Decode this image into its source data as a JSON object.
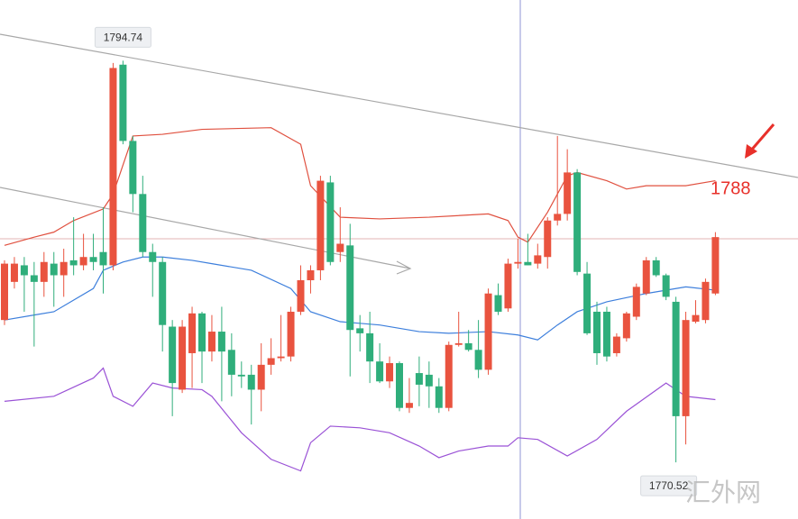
{
  "chart_data": {
    "type": "candlestick",
    "ylim": [
      1767.1,
      1798.4
    ],
    "up_color": "#e9533f",
    "down_color": "#2fae7b",
    "candles": [
      {
        "o": 1779.1,
        "h": 1782.7,
        "l": 1778.8,
        "c": 1782.5
      },
      {
        "o": 1781.4,
        "h": 1782.9,
        "l": 1781.0,
        "c": 1782.5
      },
      {
        "o": 1782.4,
        "h": 1782.9,
        "l": 1779.6,
        "c": 1781.8
      },
      {
        "o": 1781.8,
        "h": 1782.6,
        "l": 1777.5,
        "c": 1781.4
      },
      {
        "o": 1781.4,
        "h": 1783.2,
        "l": 1780.5,
        "c": 1782.6
      },
      {
        "o": 1782.5,
        "h": 1783.2,
        "l": 1779.9,
        "c": 1781.8
      },
      {
        "o": 1781.8,
        "h": 1783.4,
        "l": 1780.5,
        "c": 1782.6
      },
      {
        "o": 1782.7,
        "h": 1785.3,
        "l": 1781.8,
        "c": 1782.4
      },
      {
        "o": 1782.4,
        "h": 1784.3,
        "l": 1782.1,
        "c": 1782.9
      },
      {
        "o": 1782.9,
        "h": 1784.3,
        "l": 1782.1,
        "c": 1782.6
      },
      {
        "o": 1783.2,
        "h": 1785.9,
        "l": 1780.7,
        "c": 1782.4
      },
      {
        "o": 1782.4,
        "h": 1794.6,
        "l": 1782.1,
        "c": 1794.3
      },
      {
        "o": 1794.5,
        "h": 1794.74,
        "l": 1789.7,
        "c": 1789.9
      },
      {
        "o": 1789.9,
        "h": 1790.2,
        "l": 1785.6,
        "c": 1786.7
      },
      {
        "o": 1786.7,
        "h": 1787.8,
        "l": 1782.9,
        "c": 1783.2
      },
      {
        "o": 1783.2,
        "h": 1783.7,
        "l": 1780.5,
        "c": 1782.6
      },
      {
        "o": 1782.6,
        "h": 1782.9,
        "l": 1777.2,
        "c": 1778.8
      },
      {
        "o": 1778.7,
        "h": 1779.1,
        "l": 1773.3,
        "c": 1775.3
      },
      {
        "o": 1774.9,
        "h": 1779.1,
        "l": 1774.7,
        "c": 1778.7
      },
      {
        "o": 1777.1,
        "h": 1779.9,
        "l": 1775.0,
        "c": 1779.5
      },
      {
        "o": 1779.5,
        "h": 1779.6,
        "l": 1775.3,
        "c": 1777.2
      },
      {
        "o": 1777.2,
        "h": 1779.4,
        "l": 1776.6,
        "c": 1778.4
      },
      {
        "o": 1778.4,
        "h": 1779.9,
        "l": 1774.2,
        "c": 1777.2
      },
      {
        "o": 1777.3,
        "h": 1778.3,
        "l": 1774.5,
        "c": 1775.8
      },
      {
        "o": 1775.8,
        "h": 1776.6,
        "l": 1775.0,
        "c": 1775.7
      },
      {
        "o": 1775.8,
        "h": 1776.4,
        "l": 1772.8,
        "c": 1774.9
      },
      {
        "o": 1774.9,
        "h": 1777.7,
        "l": 1773.6,
        "c": 1776.4
      },
      {
        "o": 1776.4,
        "h": 1778.0,
        "l": 1775.8,
        "c": 1776.8
      },
      {
        "o": 1776.8,
        "h": 1779.4,
        "l": 1776.6,
        "c": 1776.9
      },
      {
        "o": 1776.9,
        "h": 1779.9,
        "l": 1776.6,
        "c": 1779.6
      },
      {
        "o": 1779.6,
        "h": 1782.4,
        "l": 1779.4,
        "c": 1781.5
      },
      {
        "o": 1781.5,
        "h": 1782.4,
        "l": 1780.7,
        "c": 1782.1
      },
      {
        "o": 1782.1,
        "h": 1787.8,
        "l": 1781.5,
        "c": 1787.5
      },
      {
        "o": 1787.4,
        "h": 1787.8,
        "l": 1782.4,
        "c": 1782.6
      },
      {
        "o": 1783.2,
        "h": 1785.9,
        "l": 1782.6,
        "c": 1783.7
      },
      {
        "o": 1783.6,
        "h": 1784.9,
        "l": 1775.7,
        "c": 1778.5
      },
      {
        "o": 1778.6,
        "h": 1779.4,
        "l": 1777.2,
        "c": 1778.3
      },
      {
        "o": 1778.3,
        "h": 1779.6,
        "l": 1775.3,
        "c": 1776.6
      },
      {
        "o": 1776.6,
        "h": 1777.7,
        "l": 1775.3,
        "c": 1775.4
      },
      {
        "o": 1775.4,
        "h": 1776.9,
        "l": 1775.0,
        "c": 1776.5
      },
      {
        "o": 1776.5,
        "h": 1776.6,
        "l": 1773.6,
        "c": 1773.8
      },
      {
        "o": 1773.8,
        "h": 1775.6,
        "l": 1773.5,
        "c": 1774.1
      },
      {
        "o": 1775.9,
        "h": 1776.9,
        "l": 1773.9,
        "c": 1775.2
      },
      {
        "o": 1775.8,
        "h": 1776.6,
        "l": 1773.8,
        "c": 1775.1
      },
      {
        "o": 1775.1,
        "h": 1775.6,
        "l": 1773.5,
        "c": 1773.8
      },
      {
        "o": 1773.8,
        "h": 1777.8,
        "l": 1773.6,
        "c": 1777.6
      },
      {
        "o": 1777.6,
        "h": 1779.6,
        "l": 1777.5,
        "c": 1777.7
      },
      {
        "o": 1777.7,
        "h": 1778.5,
        "l": 1777.2,
        "c": 1777.3
      },
      {
        "o": 1777.3,
        "h": 1779.1,
        "l": 1775.6,
        "c": 1776.1
      },
      {
        "o": 1776.1,
        "h": 1781.0,
        "l": 1775.8,
        "c": 1780.7
      },
      {
        "o": 1780.6,
        "h": 1781.3,
        "l": 1779.4,
        "c": 1779.6
      },
      {
        "o": 1779.8,
        "h": 1782.8,
        "l": 1779.6,
        "c": 1782.5
      },
      {
        "o": 1782.5,
        "h": 1784.0,
        "l": 1782.2,
        "c": 1782.6
      },
      {
        "o": 1782.6,
        "h": 1784.3,
        "l": 1782.4,
        "c": 1782.4
      },
      {
        "o": 1782.5,
        "h": 1783.7,
        "l": 1782.2,
        "c": 1783.0
      },
      {
        "o": 1782.9,
        "h": 1785.3,
        "l": 1782.2,
        "c": 1785.1
      },
      {
        "o": 1785.1,
        "h": 1790.2,
        "l": 1784.8,
        "c": 1785.5
      },
      {
        "o": 1785.5,
        "h": 1789.4,
        "l": 1785.1,
        "c": 1788.0
      },
      {
        "o": 1788.0,
        "h": 1788.2,
        "l": 1781.8,
        "c": 1782.0
      },
      {
        "o": 1781.9,
        "h": 1782.6,
        "l": 1778.2,
        "c": 1778.3
      },
      {
        "o": 1779.6,
        "h": 1780.2,
        "l": 1776.4,
        "c": 1777.1
      },
      {
        "o": 1779.6,
        "h": 1779.9,
        "l": 1776.6,
        "c": 1776.9
      },
      {
        "o": 1777.1,
        "h": 1778.3,
        "l": 1776.9,
        "c": 1778.1
      },
      {
        "o": 1778.0,
        "h": 1779.6,
        "l": 1777.8,
        "c": 1779.5
      },
      {
        "o": 1779.3,
        "h": 1781.3,
        "l": 1779.1,
        "c": 1781.1
      },
      {
        "o": 1780.7,
        "h": 1782.9,
        "l": 1780.6,
        "c": 1782.7
      },
      {
        "o": 1782.7,
        "h": 1782.9,
        "l": 1781.7,
        "c": 1781.8
      },
      {
        "o": 1781.8,
        "h": 1781.9,
        "l": 1780.3,
        "c": 1780.5
      },
      {
        "o": 1780.2,
        "h": 1780.5,
        "l": 1770.52,
        "c": 1773.3
      },
      {
        "o": 1773.3,
        "h": 1779.6,
        "l": 1771.6,
        "c": 1779.1
      },
      {
        "o": 1779.0,
        "h": 1780.3,
        "l": 1778.9,
        "c": 1779.4
      },
      {
        "o": 1779.1,
        "h": 1781.6,
        "l": 1778.9,
        "c": 1781.4
      },
      {
        "o": 1780.7,
        "h": 1784.4,
        "l": 1780.6,
        "c": 1784.1
      }
    ],
    "lines": [
      {
        "color": "#e0503f",
        "x": [
          0,
          3,
          5,
          7,
          10,
          11,
          13,
          16,
          20,
          27,
          30,
          31,
          34,
          38,
          43,
          49,
          51,
          52,
          53,
          55,
          57,
          58,
          61,
          63,
          65,
          69,
          72
        ],
        "values": [
          1783.6,
          1784.1,
          1784.4,
          1785.1,
          1785.8,
          1786.7,
          1790.2,
          1790.3,
          1790.6,
          1790.7,
          1789.7,
          1787.2,
          1785.3,
          1785.2,
          1785.3,
          1785.5,
          1785.1,
          1784.1,
          1783.8,
          1785.6,
          1787.8,
          1788.0,
          1787.5,
          1787.0,
          1787.2,
          1787.2,
          1787.5
        ]
      },
      {
        "color": "#3d7fdc",
        "x": [
          0,
          3,
          5,
          9,
          10,
          12,
          14,
          16,
          19,
          21,
          25,
          29,
          31,
          34,
          38,
          42,
          45,
          49,
          52,
          54,
          56,
          58,
          61,
          65,
          69,
          72
        ],
        "values": [
          1779.1,
          1779.4,
          1779.6,
          1781.0,
          1782.1,
          1782.6,
          1782.9,
          1782.9,
          1782.7,
          1782.5,
          1782.1,
          1781.0,
          1779.6,
          1779.0,
          1778.8,
          1778.4,
          1778.3,
          1778.4,
          1778.2,
          1777.9,
          1778.8,
          1779.6,
          1780.2,
          1780.7,
          1781.1,
          1780.9
        ]
      },
      {
        "color": "#9a52d6",
        "x": [
          0,
          5,
          9,
          10,
          11,
          13,
          15,
          17,
          20,
          21,
          24,
          27,
          30,
          31,
          33,
          36,
          39,
          42,
          44,
          46,
          49,
          51,
          52,
          54,
          57,
          60,
          63,
          67,
          69,
          72
        ],
        "values": [
          1774.2,
          1774.5,
          1775.6,
          1776.2,
          1774.5,
          1773.9,
          1775.3,
          1775.0,
          1774.9,
          1774.5,
          1772.3,
          1770.7,
          1770.0,
          1771.7,
          1772.7,
          1772.6,
          1772.3,
          1771.5,
          1770.8,
          1771.2,
          1771.5,
          1771.5,
          1772.0,
          1771.9,
          1770.9,
          1771.9,
          1773.6,
          1775.3,
          1774.5,
          1774.3
        ]
      }
    ],
    "high_index": 12,
    "low_index": 68,
    "annotation": "1788"
  },
  "watermark": "汇外网"
}
